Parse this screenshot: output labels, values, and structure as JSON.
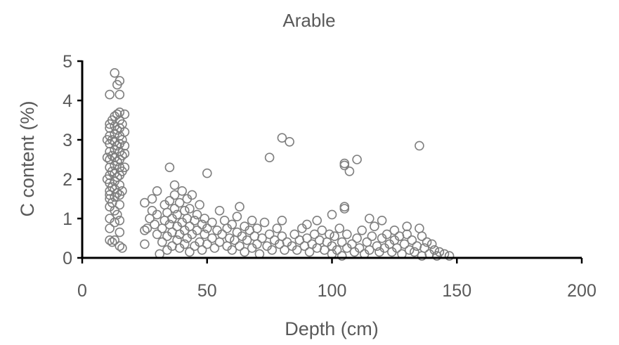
{
  "chart_data": {
    "type": "scatter",
    "title": "Arable",
    "xlabel": "Depth (cm)",
    "ylabel": "C content (%)",
    "xlim": [
      0,
      200
    ],
    "ylim": [
      0,
      5
    ],
    "xticks": [
      0,
      50,
      100,
      150,
      200
    ],
    "yticks": [
      0,
      1,
      2,
      3,
      4,
      5
    ],
    "grid": false,
    "marker": "open-circle",
    "marker_color": "#7f7f7f",
    "series": [
      {
        "points": [
          [
            10,
            2.0
          ],
          [
            10,
            2.55
          ],
          [
            10,
            3.0
          ],
          [
            11,
            0.45
          ],
          [
            11,
            0.75
          ],
          [
            11,
            1.0
          ],
          [
            11,
            1.3
          ],
          [
            11,
            1.5
          ],
          [
            11,
            1.6
          ],
          [
            11,
            1.7
          ],
          [
            11,
            1.9
          ],
          [
            11,
            2.1
          ],
          [
            11,
            2.3
          ],
          [
            11,
            2.5
          ],
          [
            11,
            2.7
          ],
          [
            11,
            2.9
          ],
          [
            11,
            3.1
          ],
          [
            11,
            3.3
          ],
          [
            11,
            3.4
          ],
          [
            11,
            4.15
          ],
          [
            12,
            0.4
          ],
          [
            12,
            1.4
          ],
          [
            12,
            1.8
          ],
          [
            12,
            2.2
          ],
          [
            12,
            2.6
          ],
          [
            12,
            3.0
          ],
          [
            12,
            3.5
          ],
          [
            13,
            0.45
          ],
          [
            13,
            0.9
          ],
          [
            13,
            1.2
          ],
          [
            13,
            1.55
          ],
          [
            13,
            1.75
          ],
          [
            13,
            1.95
          ],
          [
            13,
            2.15
          ],
          [
            13,
            2.35
          ],
          [
            13,
            2.55
          ],
          [
            13,
            2.75
          ],
          [
            13,
            2.95
          ],
          [
            13,
            3.15
          ],
          [
            13,
            3.35
          ],
          [
            13,
            3.6
          ],
          [
            13,
            4.7
          ],
          [
            14,
            1.1
          ],
          [
            14,
            1.65
          ],
          [
            14,
            2.05
          ],
          [
            14,
            2.45
          ],
          [
            14,
            2.85
          ],
          [
            14,
            3.25
          ],
          [
            14,
            3.65
          ],
          [
            14,
            4.4
          ],
          [
            15,
            0.3
          ],
          [
            15,
            0.65
          ],
          [
            15,
            0.95
          ],
          [
            15,
            1.35
          ],
          [
            15,
            1.6
          ],
          [
            15,
            1.85
          ],
          [
            15,
            2.1
          ],
          [
            15,
            2.3
          ],
          [
            15,
            2.5
          ],
          [
            15,
            2.7
          ],
          [
            15,
            2.9
          ],
          [
            15,
            3.1
          ],
          [
            15,
            3.3
          ],
          [
            15,
            3.5
          ],
          [
            15,
            3.7
          ],
          [
            15,
            4.15
          ],
          [
            15,
            4.5
          ],
          [
            16,
            0.25
          ],
          [
            16,
            1.7
          ],
          [
            16,
            2.2
          ],
          [
            16,
            2.6
          ],
          [
            16,
            3.0
          ],
          [
            16,
            3.4
          ],
          [
            17,
            2.3
          ],
          [
            17,
            2.65
          ],
          [
            17,
            2.85
          ],
          [
            17,
            3.2
          ],
          [
            17,
            3.65
          ],
          [
            25,
            0.35
          ],
          [
            25,
            0.7
          ],
          [
            25,
            1.4
          ],
          [
            26,
            0.75
          ],
          [
            27,
            1.0
          ],
          [
            28,
            1.2
          ],
          [
            28,
            1.5
          ],
          [
            29,
            0.85
          ],
          [
            30,
            0.6
          ],
          [
            30,
            1.1
          ],
          [
            30,
            1.7
          ],
          [
            31,
            0.1
          ],
          [
            32,
            0.4
          ],
          [
            32,
            0.75
          ],
          [
            33,
            0.95
          ],
          [
            33,
            1.35
          ],
          [
            34,
            0.2
          ],
          [
            34,
            0.55
          ],
          [
            34,
            1.15
          ],
          [
            35,
            0.85
          ],
          [
            35,
            1.45
          ],
          [
            35,
            2.3
          ],
          [
            36,
            0.3
          ],
          [
            36,
            0.65
          ],
          [
            36,
            1.0
          ],
          [
            37,
            1.25
          ],
          [
            37,
            1.6
          ],
          [
            37,
            1.85
          ],
          [
            38,
            0.45
          ],
          [
            38,
            0.8
          ],
          [
            38,
            1.1
          ],
          [
            39,
            0.25
          ],
          [
            39,
            0.6
          ],
          [
            39,
            1.4
          ],
          [
            40,
            0.9
          ],
          [
            40,
            1.7
          ],
          [
            41,
            0.35
          ],
          [
            41,
            0.7
          ],
          [
            41,
            1.2
          ],
          [
            42,
            0.5
          ],
          [
            42,
            1.0
          ],
          [
            42,
            1.5
          ],
          [
            43,
            0.15
          ],
          [
            43,
            0.8
          ],
          [
            43,
            1.25
          ],
          [
            44,
            0.6
          ],
          [
            44,
            1.6
          ],
          [
            45,
            0.3
          ],
          [
            45,
            0.95
          ],
          [
            46,
            0.7
          ],
          [
            46,
            1.1
          ],
          [
            47,
            0.4
          ],
          [
            47,
            1.35
          ],
          [
            48,
            0.2
          ],
          [
            48,
            0.85
          ],
          [
            49,
            0.6
          ],
          [
            49,
            1.0
          ],
          [
            50,
            0.35
          ],
          [
            50,
            0.75
          ],
          [
            50,
            2.15
          ],
          [
            52,
            0.5
          ],
          [
            52,
            0.9
          ],
          [
            53,
            0.25
          ],
          [
            54,
            0.7
          ],
          [
            55,
            1.2
          ],
          [
            55,
            0.4
          ],
          [
            56,
            0.6
          ],
          [
            57,
            0.95
          ],
          [
            58,
            0.3
          ],
          [
            58,
            0.75
          ],
          [
            59,
            0.5
          ],
          [
            60,
            0.2
          ],
          [
            60,
            0.85
          ],
          [
            61,
            0.45
          ],
          [
            62,
            1.05
          ],
          [
            62,
            0.65
          ],
          [
            63,
            1.3
          ],
          [
            63,
            0.3
          ],
          [
            64,
            0.55
          ],
          [
            65,
            0.8
          ],
          [
            65,
            0.15
          ],
          [
            66,
            0.45
          ],
          [
            67,
            0.7
          ],
          [
            68,
            0.25
          ],
          [
            68,
            0.95
          ],
          [
            69,
            0.55
          ],
          [
            70,
            0.35
          ],
          [
            70,
            0.75
          ],
          [
            71,
            0.1
          ],
          [
            72,
            0.5
          ],
          [
            73,
            0.9
          ],
          [
            74,
            0.3
          ],
          [
            75,
            0.6
          ],
          [
            75,
            2.55
          ],
          [
            76,
            0.2
          ],
          [
            77,
            0.45
          ],
          [
            78,
            0.75
          ],
          [
            79,
            0.35
          ],
          [
            80,
            0.55
          ],
          [
            80,
            0.95
          ],
          [
            80,
            3.05
          ],
          [
            81,
            0.2
          ],
          [
            82,
            0.4
          ],
          [
            83,
            2.95
          ],
          [
            84,
            0.3
          ],
          [
            85,
            0.6
          ],
          [
            86,
            0.2
          ],
          [
            87,
            0.45
          ],
          [
            88,
            0.75
          ],
          [
            89,
            0.3
          ],
          [
            90,
            0.5
          ],
          [
            90,
            0.85
          ],
          [
            91,
            0.15
          ],
          [
            92,
            0.35
          ],
          [
            93,
            0.6
          ],
          [
            94,
            0.95
          ],
          [
            94,
            0.25
          ],
          [
            95,
            0.45
          ],
          [
            96,
            0.7
          ],
          [
            97,
            0.2
          ],
          [
            98,
            0.4
          ],
          [
            99,
            0.6
          ],
          [
            100,
            0.1
          ],
          [
            100,
            0.3
          ],
          [
            100,
            1.1
          ],
          [
            101,
            0.55
          ],
          [
            102,
            0.2
          ],
          [
            103,
            0.75
          ],
          [
            104,
            0.4
          ],
          [
            104,
            0.05
          ],
          [
            105,
            1.25
          ],
          [
            105,
            1.3
          ],
          [
            105,
            2.35
          ],
          [
            105,
            2.4
          ],
          [
            106,
            0.25
          ],
          [
            106,
            0.6
          ],
          [
            107,
            2.2
          ],
          [
            108,
            0.35
          ],
          [
            109,
            0.15
          ],
          [
            110,
            2.5
          ],
          [
            110,
            0.5
          ],
          [
            111,
            0.25
          ],
          [
            112,
            0.7
          ],
          [
            113,
            0.1
          ],
          [
            114,
            0.4
          ],
          [
            115,
            1.0
          ],
          [
            115,
            0.2
          ],
          [
            116,
            0.55
          ],
          [
            117,
            0.8
          ],
          [
            118,
            0.3
          ],
          [
            119,
            0.15
          ],
          [
            120,
            0.5
          ],
          [
            120,
            0.95
          ],
          [
            121,
            0.25
          ],
          [
            122,
            0.6
          ],
          [
            123,
            0.35
          ],
          [
            124,
            0.15
          ],
          [
            125,
            0.7
          ],
          [
            125,
            0.45
          ],
          [
            126,
            0.25
          ],
          [
            127,
            0.55
          ],
          [
            128,
            0.1
          ],
          [
            129,
            0.35
          ],
          [
            130,
            0.8
          ],
          [
            130,
            0.6
          ],
          [
            131,
            0.2
          ],
          [
            132,
            0.45
          ],
          [
            133,
            0.15
          ],
          [
            134,
            0.3
          ],
          [
            135,
            2.85
          ],
          [
            135,
            0.75
          ],
          [
            136,
            0.55
          ],
          [
            136,
            0.05
          ],
          [
            137,
            0.25
          ],
          [
            138,
            0.4
          ],
          [
            139,
            0.1
          ],
          [
            140,
            0.35
          ],
          [
            141,
            0.2
          ],
          [
            142,
            0.05
          ],
          [
            143,
            0.15
          ],
          [
            145,
            0.1
          ],
          [
            147,
            0.05
          ]
        ]
      }
    ]
  }
}
